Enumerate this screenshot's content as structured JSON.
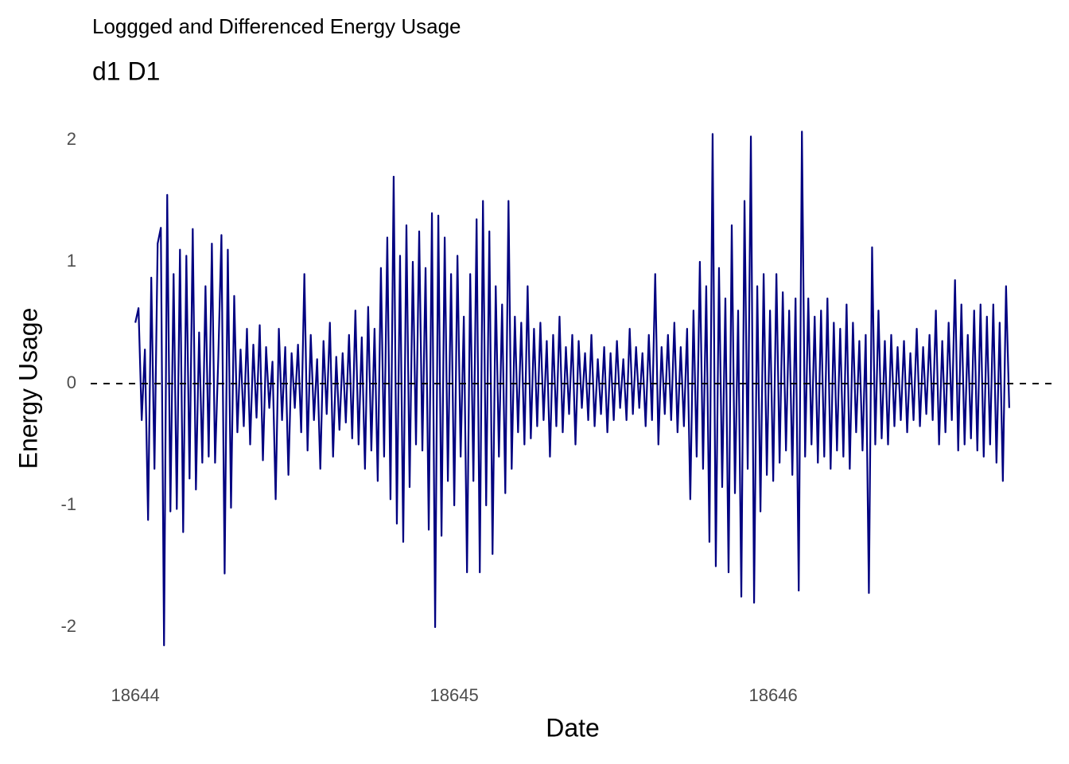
{
  "chart_data": {
    "type": "line",
    "title": "Loggged and Differenced Energy Usage",
    "subtitle": "d1 D1",
    "x_label": "Date",
    "y_label": "Energy Usage",
    "color": "#000080",
    "hline": 0,
    "grid": false,
    "xlim": [
      18643.86,
      18646.88
    ],
    "ylim": [
      -2.35,
      2.25
    ],
    "xticks": [
      18644,
      18645,
      18646
    ],
    "yticks": [
      -2,
      -1,
      0,
      1,
      2
    ],
    "x": [
      18644,
      18644.01,
      18644.02,
      18644.03,
      18644.04,
      18644.05,
      18644.06,
      18644.07,
      18644.08,
      18644.09,
      18644.1,
      18644.11,
      18644.12,
      18644.13,
      18644.14,
      18644.15,
      18644.16,
      18644.17,
      18644.18,
      18644.19,
      18644.2,
      18644.21,
      18644.22,
      18644.23,
      18644.24,
      18644.25,
      18644.26,
      18644.27,
      18644.28,
      18644.29,
      18644.3,
      18644.31,
      18644.32,
      18644.33,
      18644.34,
      18644.35,
      18644.36,
      18644.37,
      18644.38,
      18644.39,
      18644.4,
      18644.41,
      18644.42,
      18644.43,
      18644.44,
      18644.45,
      18644.46,
      18644.47,
      18644.48,
      18644.49,
      18644.5,
      18644.51,
      18644.52,
      18644.53,
      18644.54,
      18644.55,
      18644.56,
      18644.57,
      18644.58,
      18644.59,
      18644.6,
      18644.61,
      18644.62,
      18644.63,
      18644.64,
      18644.65,
      18644.66,
      18644.67,
      18644.68,
      18644.69,
      18644.7,
      18644.71,
      18644.72,
      18644.73,
      18644.74,
      18644.75,
      18644.76,
      18644.77,
      18644.78,
      18644.79,
      18644.8,
      18644.81,
      18644.82,
      18644.83,
      18644.84,
      18644.85,
      18644.86,
      18644.87,
      18644.88,
      18644.89,
      18644.9,
      18644.91,
      18644.92,
      18644.93,
      18644.94,
      18644.95,
      18644.96,
      18644.97,
      18644.98,
      18644.99,
      18645,
      18645.01,
      18645.02,
      18645.03,
      18645.04,
      18645.05,
      18645.06,
      18645.07,
      18645.08,
      18645.09,
      18645.1,
      18645.11,
      18645.12,
      18645.13,
      18645.14,
      18645.15,
      18645.16,
      18645.17,
      18645.18,
      18645.19,
      18645.2,
      18645.21,
      18645.22,
      18645.23,
      18645.24,
      18645.25,
      18645.26,
      18645.27,
      18645.28,
      18645.29,
      18645.3,
      18645.31,
      18645.32,
      18645.33,
      18645.34,
      18645.35,
      18645.36,
      18645.37,
      18645.38,
      18645.39,
      18645.4,
      18645.41,
      18645.42,
      18645.43,
      18645.44,
      18645.45,
      18645.46,
      18645.47,
      18645.48,
      18645.49,
      18645.5,
      18645.51,
      18645.52,
      18645.53,
      18645.54,
      18645.55,
      18645.56,
      18645.57,
      18645.58,
      18645.59,
      18645.6,
      18645.61,
      18645.62,
      18645.63,
      18645.64,
      18645.65,
      18645.66,
      18645.67,
      18645.68,
      18645.69,
      18645.7,
      18645.71,
      18645.72,
      18645.73,
      18645.74,
      18645.75,
      18645.76,
      18645.77,
      18645.78,
      18645.79,
      18645.8,
      18645.81,
      18645.82,
      18645.83,
      18645.84,
      18645.85,
      18645.86,
      18645.87,
      18645.88,
      18645.89,
      18645.9,
      18645.91,
      18645.92,
      18645.93,
      18645.94,
      18645.95,
      18645.96,
      18645.97,
      18645.98,
      18645.99,
      18646,
      18646.01,
      18646.02,
      18646.03,
      18646.04,
      18646.05,
      18646.06,
      18646.07,
      18646.08,
      18646.09,
      18646.1,
      18646.11,
      18646.12,
      18646.13,
      18646.14,
      18646.15,
      18646.16,
      18646.17,
      18646.18,
      18646.19,
      18646.2,
      18646.21,
      18646.22,
      18646.23,
      18646.24,
      18646.25,
      18646.26,
      18646.27,
      18646.28,
      18646.29,
      18646.3,
      18646.31,
      18646.32,
      18646.33,
      18646.34,
      18646.35,
      18646.36,
      18646.37,
      18646.38,
      18646.39,
      18646.4,
      18646.41,
      18646.42,
      18646.43,
      18646.44,
      18646.45,
      18646.46,
      18646.47,
      18646.48,
      18646.49,
      18646.5,
      18646.51,
      18646.52,
      18646.53,
      18646.54,
      18646.55,
      18646.56,
      18646.57,
      18646.58,
      18646.59,
      18646.6,
      18646.61,
      18646.62,
      18646.63,
      18646.64,
      18646.65,
      18646.66,
      18646.67,
      18646.68,
      18646.69,
      18646.7,
      18646.71,
      18646.72,
      18646.73,
      18646.74
    ],
    "values": [
      0.5,
      0.62,
      -0.3,
      0.28,
      -1.12,
      0.87,
      -0.7,
      1.15,
      1.28,
      -2.15,
      1.55,
      -1.05,
      0.9,
      -1.03,
      1.1,
      -1.22,
      1.05,
      -0.78,
      1.27,
      -0.87,
      0.42,
      -0.65,
      0.8,
      -0.6,
      1.15,
      -0.65,
      0.2,
      1.22,
      -1.56,
      1.1,
      -1.02,
      0.72,
      -0.4,
      0.28,
      -0.35,
      0.45,
      -0.5,
      0.32,
      -0.28,
      0.48,
      -0.63,
      0.3,
      -0.2,
      0.18,
      -0.95,
      0.45,
      -0.3,
      0.3,
      -0.75,
      0.25,
      -0.2,
      0.32,
      -0.4,
      0.9,
      -0.55,
      0.4,
      -0.3,
      0.2,
      -0.7,
      0.35,
      -0.25,
      0.5,
      -0.6,
      0.22,
      -0.38,
      0.25,
      -0.32,
      0.4,
      -0.45,
      0.6,
      -0.5,
      0.38,
      -0.7,
      0.63,
      -0.55,
      0.45,
      -0.8,
      0.95,
      -0.6,
      1.2,
      -0.95,
      1.7,
      -1.15,
      1.05,
      -1.3,
      1.3,
      -0.85,
      1.0,
      -0.5,
      1.25,
      -0.55,
      0.95,
      -1.2,
      1.4,
      -2.0,
      1.38,
      -1.25,
      1.2,
      -0.8,
      0.9,
      -1.0,
      1.05,
      -0.6,
      0.55,
      -1.55,
      0.9,
      -0.8,
      1.35,
      -1.55,
      1.5,
      -1.0,
      1.25,
      -1.4,
      0.8,
      -0.6,
      0.65,
      -0.9,
      1.5,
      -0.7,
      0.55,
      -0.4,
      0.5,
      -0.5,
      0.8,
      -0.45,
      0.45,
      -0.35,
      0.5,
      -0.3,
      0.35,
      -0.6,
      0.4,
      -0.35,
      0.55,
      -0.4,
      0.3,
      -0.25,
      0.4,
      -0.5,
      0.35,
      -0.2,
      0.25,
      -0.3,
      0.4,
      -0.35,
      0.2,
      -0.25,
      0.3,
      -0.4,
      0.25,
      -0.3,
      0.35,
      -0.2,
      0.2,
      -0.3,
      0.45,
      -0.25,
      0.3,
      -0.2,
      0.25,
      -0.35,
      0.4,
      -0.3,
      0.9,
      -0.5,
      0.3,
      -0.25,
      0.4,
      -0.3,
      0.5,
      -0.4,
      0.3,
      -0.35,
      0.45,
      -0.95,
      0.6,
      -0.6,
      1.0,
      -0.7,
      0.8,
      -1.3,
      2.05,
      -1.5,
      0.95,
      -0.85,
      0.7,
      -1.55,
      1.3,
      -0.9,
      0.6,
      -1.75,
      1.5,
      -0.7,
      2.03,
      -1.8,
      0.8,
      -1.05,
      0.9,
      -0.75,
      0.6,
      -0.8,
      0.9,
      -0.65,
      0.75,
      -0.55,
      0.6,
      -0.75,
      0.7,
      -1.7,
      2.07,
      -0.6,
      0.7,
      -0.5,
      0.55,
      -0.65,
      0.6,
      -0.6,
      0.7,
      -0.7,
      0.5,
      -0.55,
      0.45,
      -0.6,
      0.65,
      -0.7,
      0.5,
      -0.4,
      0.35,
      -0.55,
      0.4,
      -1.72,
      1.12,
      -0.5,
      0.6,
      -0.45,
      0.35,
      -0.5,
      0.4,
      -0.35,
      0.3,
      -0.3,
      0.35,
      -0.4,
      0.25,
      -0.3,
      0.45,
      -0.35,
      0.3,
      -0.25,
      0.4,
      -0.3,
      0.6,
      -0.5,
      0.35,
      -0.4,
      0.5,
      -0.3,
      0.85,
      -0.55,
      0.65,
      -0.5,
      0.4,
      -0.45,
      0.6,
      -0.55,
      0.65,
      -0.6,
      0.55,
      -0.5,
      0.65,
      -0.65,
      0.5,
      -0.8,
      0.8,
      -0.2
    ]
  }
}
